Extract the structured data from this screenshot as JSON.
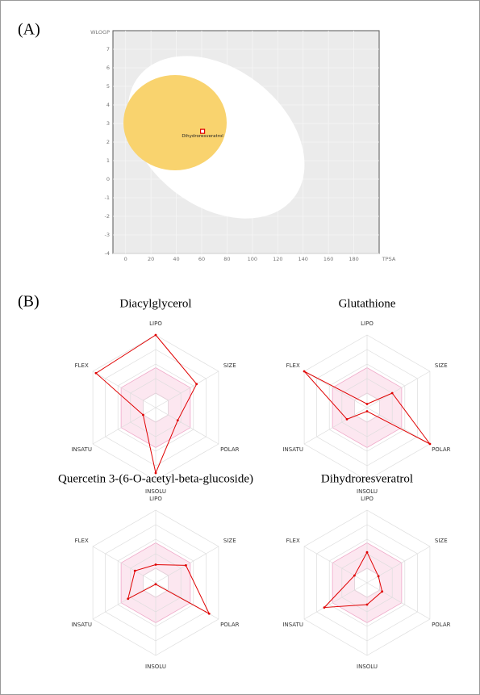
{
  "section_b_label": "(B)",
  "chart_data": [
    {
      "type": "scatter",
      "panel_label": "(A)",
      "x_label": "TPSA",
      "y_label": "WLOGP",
      "xlim": [
        -10,
        200
      ],
      "xticks": [
        0,
        20,
        40,
        60,
        80,
        100,
        120,
        140,
        160,
        180
      ],
      "ylim": [
        -4,
        8
      ],
      "yticks": [
        -4,
        -3,
        -2,
        -1,
        0,
        1,
        2,
        3,
        4,
        5,
        6,
        7
      ],
      "grid": true,
      "series": [
        {
          "name": "Dihydroresveratrol",
          "color": "#e00000",
          "x": [
            60.69
          ],
          "values": [
            2.58
          ]
        }
      ]
    },
    {
      "type": "radar",
      "title": "Diacylglycerol",
      "axes": [
        "LIPO",
        "SIZE",
        "POLAR",
        "INSOLU",
        "INSATU",
        "FLEX"
      ],
      "rlim": [
        0,
        1
      ],
      "rticks": [
        0.2,
        0.4,
        0.6,
        0.8,
        1
      ],
      "optimal_range": [
        0.2,
        0.55
      ],
      "color": "#e00000",
      "values": [
        1.0,
        0.65,
        0.35,
        0.9,
        0.2,
        0.95
      ]
    },
    {
      "type": "radar",
      "title": "Glutathione",
      "axes": [
        "LIPO",
        "SIZE",
        "POLAR",
        "INSOLU",
        "INSATU",
        "FLEX"
      ],
      "rlim": [
        0,
        1
      ],
      "rticks": [
        0.2,
        0.4,
        0.6,
        0.8,
        1
      ],
      "optimal_range": [
        0.2,
        0.55
      ],
      "color": "#e00000",
      "values": [
        0.05,
        0.4,
        1.0,
        0.05,
        0.32,
        1.0
      ]
    },
    {
      "type": "radar",
      "title": "Quercetin 3-(6-O-acetyl-beta-glucoside)",
      "axes": [
        "LIPO",
        "SIZE",
        "POLAR",
        "INSOLU",
        "INSATU",
        "FLEX"
      ],
      "rlim": [
        0,
        1
      ],
      "rticks": [
        0.2,
        0.4,
        0.6,
        0.8,
        1
      ],
      "optimal_range": [
        0.2,
        0.55
      ],
      "color": "#e00000",
      "values": [
        0.25,
        0.48,
        0.85,
        0.02,
        0.44,
        0.33
      ]
    },
    {
      "type": "radar",
      "title": "Dihydroresveratrol",
      "axes": [
        "LIPO",
        "SIZE",
        "POLAR",
        "INSOLU",
        "INSATU",
        "FLEX"
      ],
      "rlim": [
        0,
        1
      ],
      "rticks": [
        0.2,
        0.4,
        0.6,
        0.8,
        1
      ],
      "optimal_range": [
        0.2,
        0.55
      ],
      "color": "#e00000",
      "values": [
        0.42,
        0.18,
        0.24,
        0.3,
        0.68,
        0.2
      ]
    }
  ]
}
